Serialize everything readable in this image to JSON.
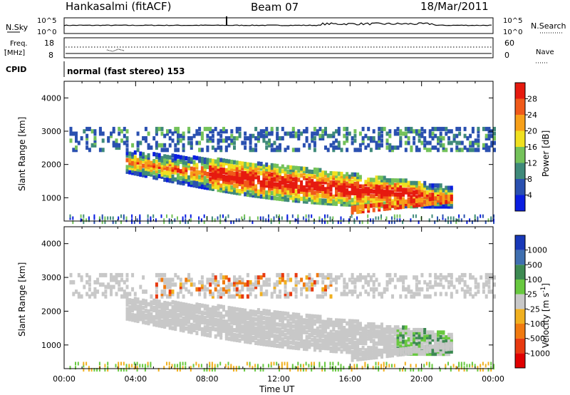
{
  "header": {
    "station": "Hankasalmi (fitACF)",
    "beam": "Beam 07",
    "date": "18/Mar/2011"
  },
  "strip_labels": {
    "nsky": "N.Sky",
    "nsky_ticks": [
      "10^5",
      "10^0"
    ],
    "nsearch": "N.Search",
    "nsearch_ticks": [
      "10^5",
      "10^0"
    ],
    "freq_line1": "Freq.",
    "freq_line2": "[MHz]",
    "freq_ticks": [
      "18",
      "8"
    ],
    "nave": "Nave",
    "nave_ticks": [
      "60",
      "0"
    ],
    "cpid": "CPID",
    "cpid_text": "normal (fast stereo) 153"
  },
  "chart_data": [
    {
      "type": "heatmap",
      "panel": "power",
      "ylabel": "Slant Range [km]",
      "ylim": [
        300,
        4500
      ],
      "yticks": [
        1000,
        2000,
        3000,
        4000
      ],
      "xlim": [
        "00:00",
        "24:00"
      ],
      "colorbar_label": "Power [dB]",
      "colorbar_ticks": [
        4,
        8,
        12,
        16,
        20,
        24,
        28
      ],
      "colorbar_colors": [
        "#0a1ee0",
        "#2a50b0",
        "#3f8a7a",
        "#74c25a",
        "#f0e020",
        "#f7a019",
        "#f05a1a",
        "#e61a0f"
      ],
      "regions": [
        {
          "desc": "main echo band",
          "time_start": "03:30",
          "time_end": "21:30",
          "range_center_start": 2100,
          "range_center_end": 1100,
          "power_db": 28
        },
        {
          "desc": "upper band",
          "time_start": "01:00",
          "time_end": "23:50",
          "range_center": 2800,
          "power_db": 8
        }
      ]
    },
    {
      "type": "heatmap",
      "panel": "velocity",
      "ylabel": "Slant Range [km]",
      "ylim": [
        300,
        4500
      ],
      "yticks": [
        1000,
        2000,
        3000,
        4000
      ],
      "xlim": [
        "00:00",
        "24:00"
      ],
      "xticks": [
        "00:00",
        "04:00",
        "08:00",
        "12:00",
        "16:00",
        "20:00",
        "00:00"
      ],
      "xlabel": "Time UT",
      "colorbar_label": "Velocity [m s^-1]",
      "colorbar_ticks": [
        1000,
        500,
        100,
        25,
        -25,
        -100,
        -500,
        -1000
      ],
      "colorbar_colors": [
        "#1838b8",
        "#3f6fb0",
        "#3d8a52",
        "#68c840",
        "#c8c8c8",
        "#f0b020",
        "#f07a10",
        "#e83a10",
        "#e00000"
      ]
    }
  ]
}
